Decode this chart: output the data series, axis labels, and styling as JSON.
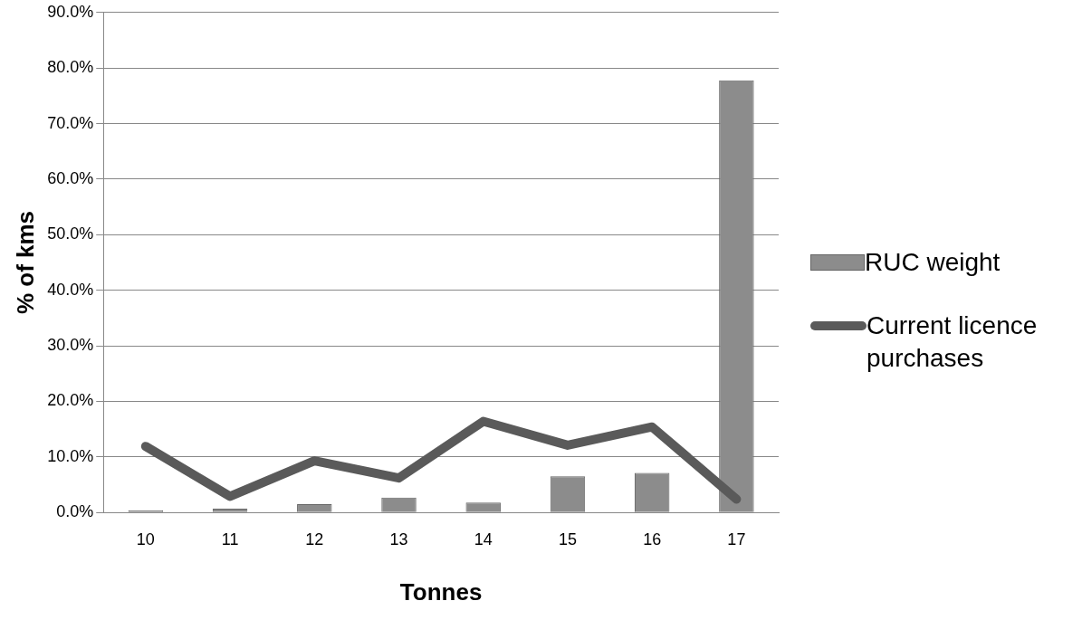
{
  "chart_data": {
    "type": "bar",
    "xlabel": "Tonnes",
    "ylabel": "% of kms",
    "categories": [
      "10",
      "11",
      "12",
      "13",
      "14",
      "15",
      "16",
      "17"
    ],
    "series": [
      {
        "name": "RUC weight",
        "color": "#8c8c8c",
        "values": [
          0.4,
          0.7,
          1.5,
          2.7,
          1.8,
          6.5,
          7.1,
          77.8
        ]
      },
      {
        "name": "Current licence purchases",
        "type": "line",
        "color": "#5a5a5a",
        "values": [
          11.9,
          2.9,
          9.3,
          6.2,
          16.4,
          12.1,
          15.4,
          2.4
        ]
      }
    ],
    "ylim": [
      0,
      90
    ],
    "yticks": [
      {
        "value": 0,
        "label": "0.0%"
      },
      {
        "value": 10,
        "label": "10.0%"
      },
      {
        "value": 20,
        "label": "20.0%"
      },
      {
        "value": 30,
        "label": "30.0%"
      },
      {
        "value": 40,
        "label": "40.0%"
      },
      {
        "value": 50,
        "label": "50.0%"
      },
      {
        "value": 60,
        "label": "60.0%"
      },
      {
        "value": 70,
        "label": "70.0%"
      },
      {
        "value": 80,
        "label": "80.0%"
      },
      {
        "value": 90,
        "label": "90.0%"
      }
    ],
    "grid": "y",
    "legend": "right",
    "marker": "none",
    "line_style": "solid"
  }
}
